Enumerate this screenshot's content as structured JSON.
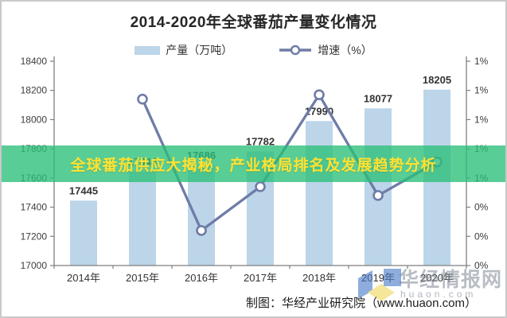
{
  "chart_data": {
    "type": "combo-bar-line",
    "title": "2014-2020年全球番茄产量变化情况",
    "categories": [
      "2014年",
      "2015年",
      "2016年",
      "2017年",
      "2018年",
      "2019年",
      "2020年"
    ],
    "series": [
      {
        "name": "产量（万吨）",
        "type": "bar",
        "axis": "left",
        "color": "#BCD5E9",
        "values": [
          17445,
          17644,
          17686,
          17782,
          17990,
          18077,
          18205
        ],
        "labels": [
          "17445",
          "17644",
          "17686",
          "17782",
          "17990",
          "18077",
          "18205"
        ]
      },
      {
        "name": "增速（%）",
        "type": "line",
        "axis": "right",
        "color": "#6F7CA6",
        "marker": "open-circle",
        "values": [
          null,
          1.14,
          0.24,
          0.54,
          1.17,
          0.48,
          0.71
        ]
      }
    ],
    "left_axis": {
      "min": 17000,
      "max": 18400,
      "step": 200,
      "tick_labels": [
        "17000",
        "17200",
        "17400",
        "17600",
        "17800",
        "18000",
        "18200",
        "18400"
      ]
    },
    "right_axis": {
      "min": 0,
      "max": 1.4,
      "step": 0.2,
      "tick_labels": [
        "0%",
        "0%",
        "0%",
        "1%",
        "1%",
        "1%",
        "1%",
        "1%"
      ]
    },
    "grid": false,
    "legend_position": "top"
  },
  "banner": {
    "text": "全球番茄供应大揭秘，产业格局排名及发展趋势分析",
    "background": "#2ABF78",
    "text_color": "#FFE232"
  },
  "caption": {
    "text": "制图：华经产业研究院（www.huaon.com）"
  },
  "watermark": {
    "brand": "华经情报网",
    "domain": "huaon.com",
    "logo_blue": "#4A7CC7",
    "logo_yellow": "#F2D75C"
  }
}
